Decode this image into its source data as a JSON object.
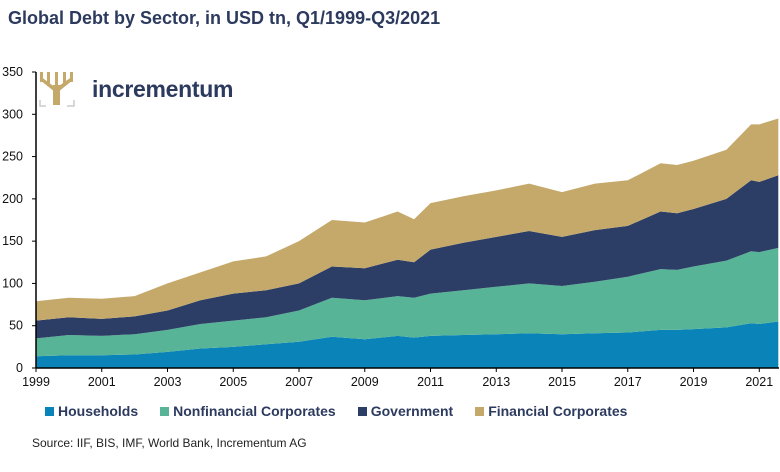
{
  "chart_data": {
    "type": "area",
    "stacked": true,
    "title": "Global Debt by Sector, in USD tn, Q1/1999-Q3/2021",
    "xlabel": "",
    "ylabel": "",
    "ylim": [
      0,
      350
    ],
    "yticks": [
      "0",
      "50",
      "100",
      "150",
      "200",
      "250",
      "300",
      "350"
    ],
    "xlim": [
      1999,
      2021.6
    ],
    "xticks": [
      "1999",
      "2001",
      "2003",
      "2005",
      "2007",
      "2009",
      "2011",
      "2013",
      "2015",
      "2017",
      "2019",
      "2021"
    ],
    "grid": false,
    "legend_position": "bottom",
    "x": [
      1999,
      2000,
      2001,
      2002,
      2003,
      2004,
      2005,
      2006,
      2007,
      2008,
      2009,
      2010,
      2010.5,
      2011,
      2012,
      2013,
      2014,
      2015,
      2016,
      2017,
      2018,
      2018.5,
      2019,
      2020,
      2020.75,
      2021,
      2021.58
    ],
    "series": [
      {
        "name": "Households",
        "color": "#0a84b8",
        "values": [
          14,
          15,
          15,
          16,
          19,
          23,
          25,
          28,
          31,
          37,
          34,
          38,
          36,
          38,
          39,
          40,
          41,
          40,
          41,
          42,
          45,
          45,
          46,
          48,
          53,
          52,
          55
        ]
      },
      {
        "name": "Nonfinancial Corporates",
        "color": "#58b497",
        "values": [
          21,
          24,
          23,
          24,
          26,
          29,
          31,
          32,
          37,
          46,
          46,
          47,
          47,
          50,
          53,
          56,
          59,
          57,
          61,
          66,
          72,
          71,
          74,
          79,
          85,
          85,
          87
        ]
      },
      {
        "name": "Government",
        "color": "#2d3e66",
        "values": [
          21,
          21,
          20,
          21,
          23,
          28,
          32,
          32,
          32,
          37,
          38,
          43,
          42,
          52,
          56,
          59,
          62,
          58,
          61,
          60,
          68,
          67,
          68,
          73,
          84,
          83,
          86
        ]
      },
      {
        "name": "Financial Corporates",
        "color": "#c4a96b",
        "values": [
          23,
          23,
          24,
          24,
          32,
          33,
          38,
          40,
          50,
          55,
          54,
          57,
          51,
          55,
          55,
          55,
          56,
          53,
          55,
          54,
          57,
          57,
          57,
          58,
          66,
          68,
          67
        ]
      }
    ]
  },
  "logo": {
    "text": "incrementum",
    "icon": "tree-icon",
    "color": "#2c3a5e",
    "icon_color": "#c4a96b"
  },
  "source": "Source: IIF, BIS, IMF, World Bank, Incrementum AG"
}
